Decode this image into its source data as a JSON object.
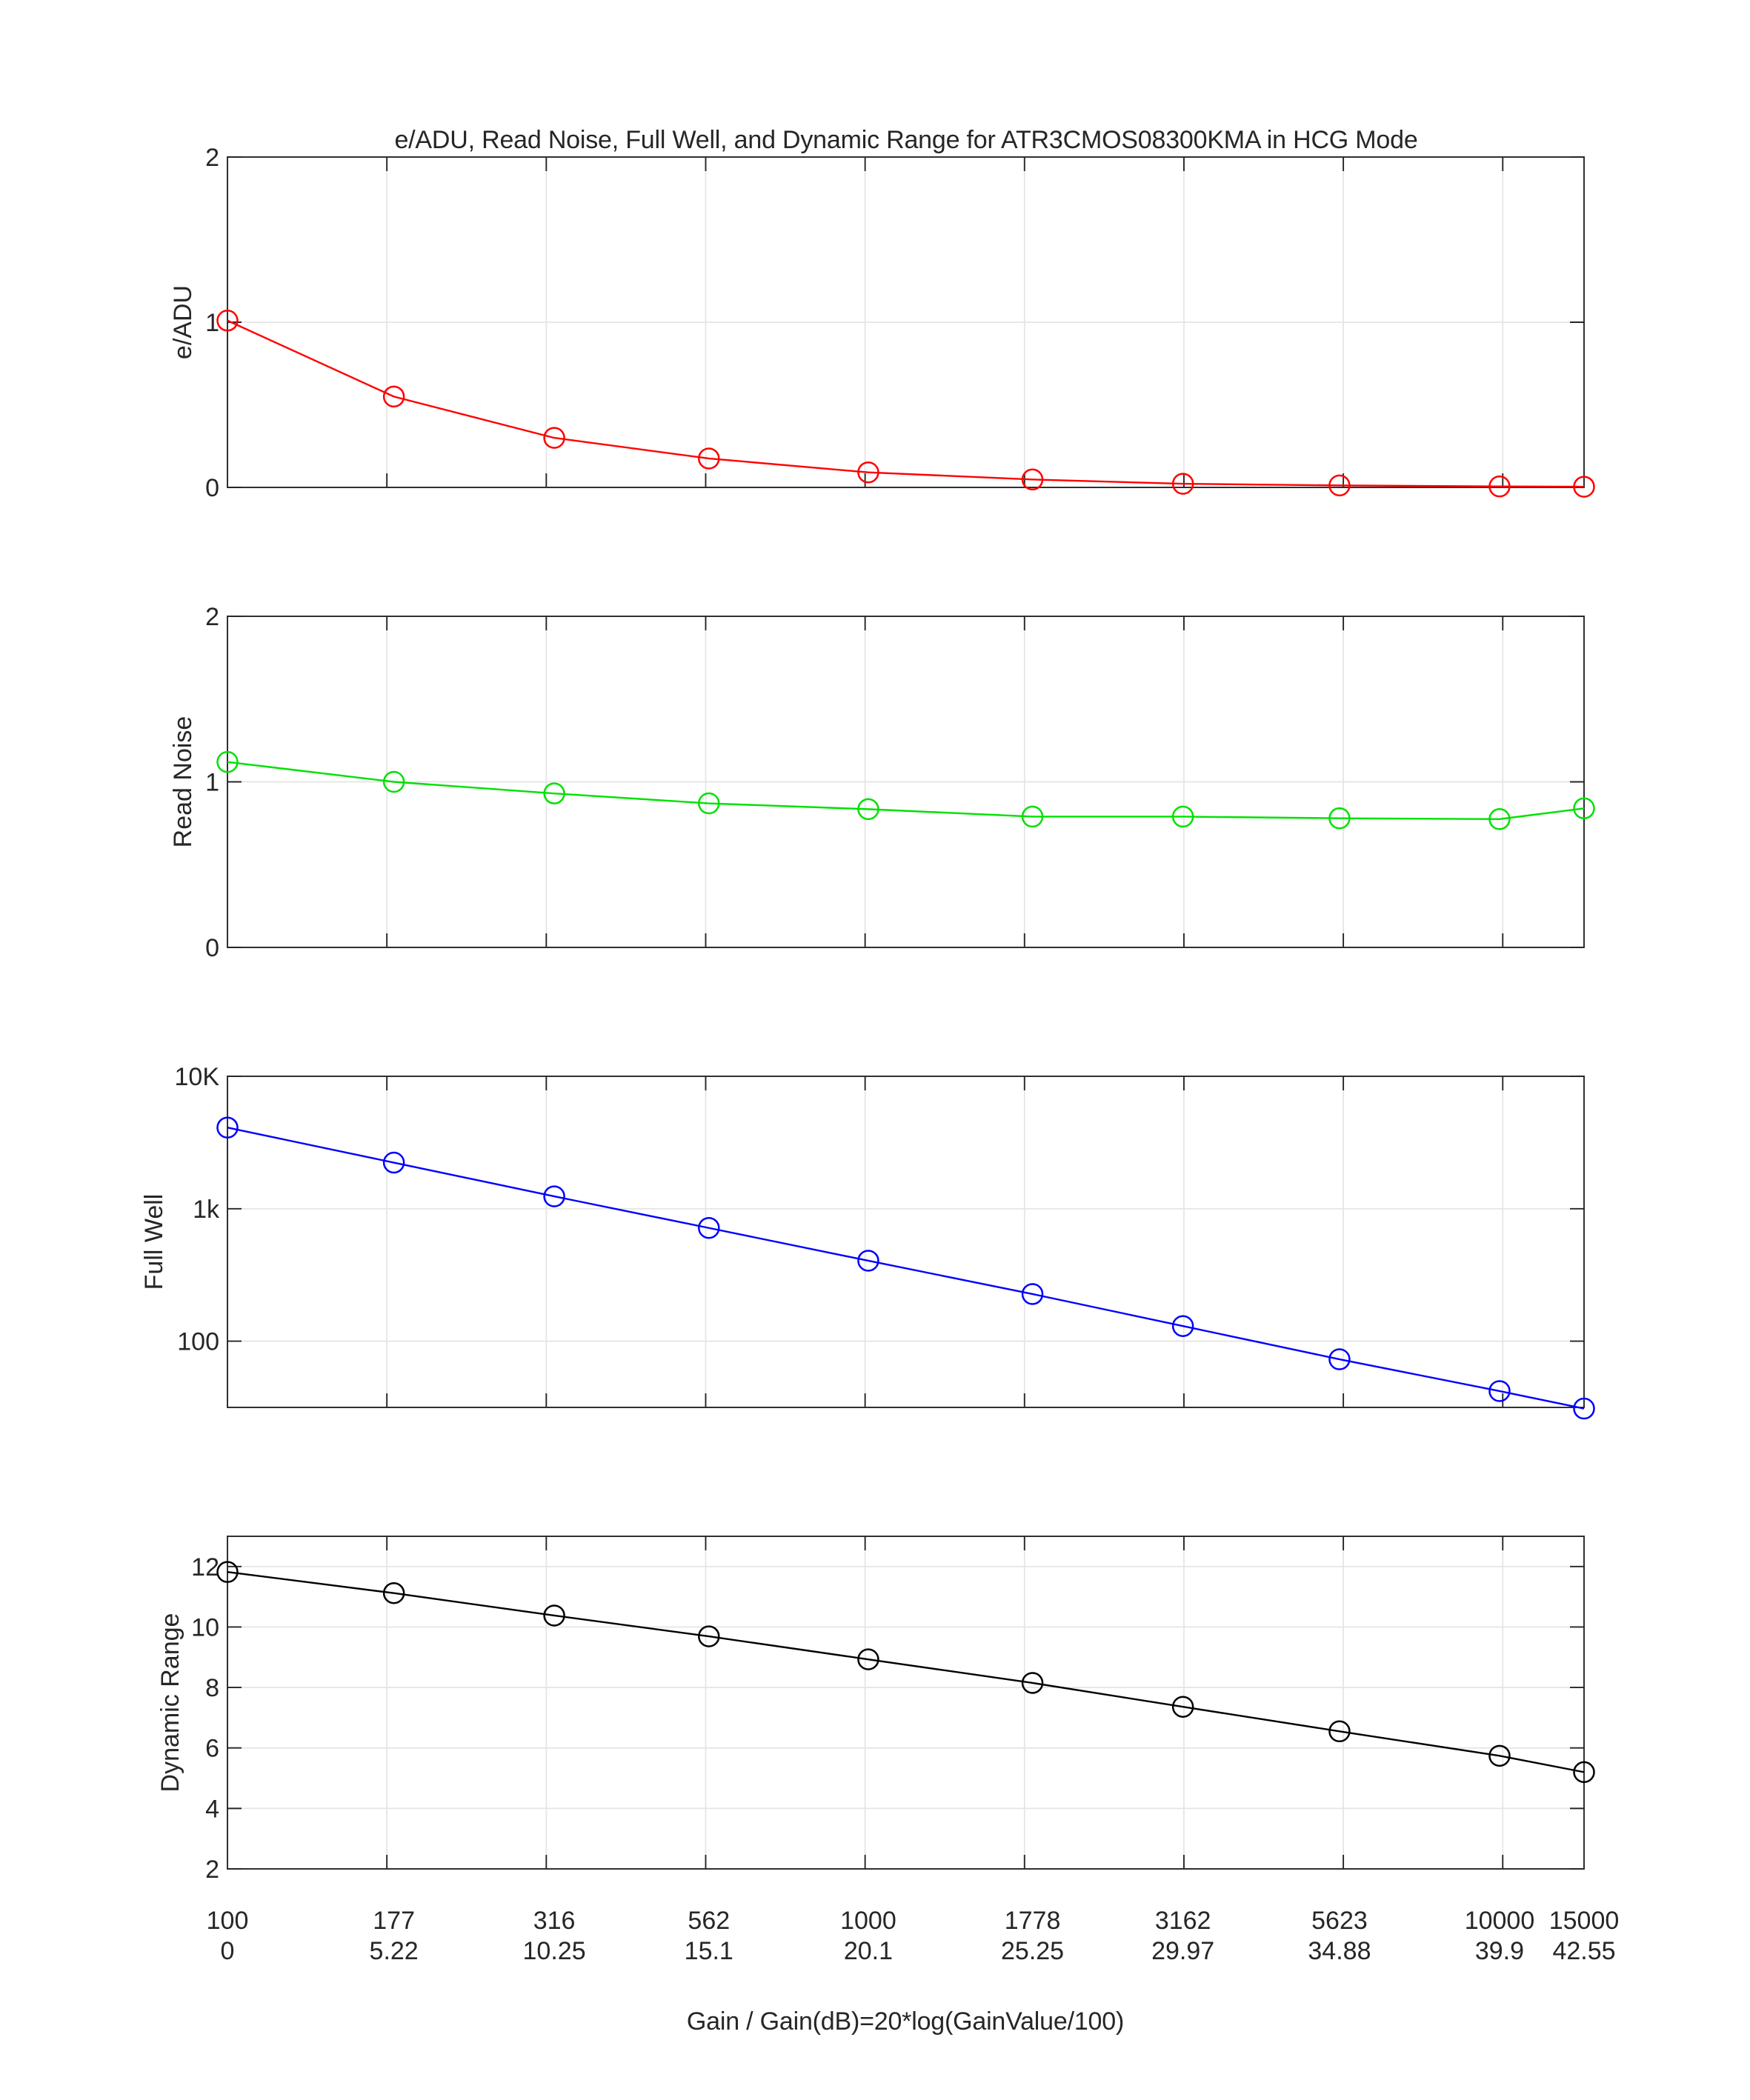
{
  "title": "e/ADU, Read Noise, Full Well, and Dynamic Range for ATR3CMOS08300KMA in HCG Mode",
  "x_axis": {
    "label": "Gain / Gain(dB)=20*log(GainValue/100)",
    "db_min": 0,
    "db_max": 42.55,
    "tick_db": [
      0,
      5.22,
      10.25,
      15.1,
      20.1,
      25.25,
      29.97,
      34.88,
      39.9,
      42.55
    ],
    "grid_db": [
      5,
      10,
      15,
      20,
      25,
      30,
      35,
      40
    ],
    "gain_labels": [
      "100",
      "177",
      "316",
      "562",
      "1000",
      "1778",
      "3162",
      "5623",
      "10000",
      "15000"
    ],
    "db_labels": [
      "0",
      "5.22",
      "10.25",
      "15.1",
      "20.1",
      "25.25",
      "29.97",
      "34.88",
      "39.9",
      "42.55"
    ]
  },
  "colors": {
    "axis": "#262626",
    "grid": "#e4e4e4",
    "text": "#262626",
    "eadu": "#ff0000",
    "read_noise": "#00e100",
    "full_well": "#0000ff",
    "dynamic_range": "#000000"
  },
  "chart_data": [
    {
      "type": "line",
      "name": "e/ADU",
      "ylabel": "e/ADU",
      "color_key": "eadu",
      "yscale": "linear",
      "ylim": [
        0,
        2
      ],
      "yticks": [
        {
          "v": 0,
          "label": "0"
        },
        {
          "v": 1,
          "label": "1"
        },
        {
          "v": 2,
          "label": "2"
        }
      ],
      "ygrid": [
        1
      ],
      "x_db": [
        0,
        5.22,
        10.25,
        15.1,
        20.1,
        25.25,
        29.97,
        34.88,
        39.9,
        42.55
      ],
      "values": [
        1.01,
        0.55,
        0.3,
        0.175,
        0.091,
        0.048,
        0.022,
        0.012,
        0.006,
        0.004
      ]
    },
    {
      "type": "line",
      "name": "Read Noise",
      "ylabel": "Read Noise",
      "color_key": "read_noise",
      "yscale": "linear",
      "ylim": [
        0,
        2
      ],
      "yticks": [
        {
          "v": 0,
          "label": "0"
        },
        {
          "v": 1,
          "label": "1"
        },
        {
          "v": 2,
          "label": "2"
        }
      ],
      "ygrid": [
        1
      ],
      "x_db": [
        0,
        5.22,
        10.25,
        15.1,
        20.1,
        25.25,
        29.97,
        34.88,
        39.9,
        42.55
      ],
      "values": [
        1.12,
        1.0,
        0.93,
        0.87,
        0.835,
        0.79,
        0.79,
        0.78,
        0.775,
        0.84
      ]
    },
    {
      "type": "line",
      "name": "Full Well",
      "ylabel": "Full Well",
      "color_key": "full_well",
      "yscale": "log",
      "ylim": [
        31.62,
        10000
      ],
      "yticks": [
        {
          "v": 10000,
          "label": "10K"
        },
        {
          "v": 1000,
          "label": "1k"
        },
        {
          "v": 100,
          "label": "100"
        }
      ],
      "ygrid": [
        1000,
        100
      ],
      "x_db": [
        0,
        5.22,
        10.25,
        15.1,
        20.1,
        25.25,
        29.97,
        34.88,
        39.9,
        42.55
      ],
      "values": [
        4100,
        2230,
        1240,
        716,
        405,
        227,
        130,
        73,
        42,
        31
      ]
    },
    {
      "type": "line",
      "name": "Dynamic Range",
      "ylabel": "Dynamic Range",
      "color_key": "dynamic_range",
      "yscale": "linear",
      "ylim": [
        2,
        13
      ],
      "yticks": [
        {
          "v": 12,
          "label": "12"
        },
        {
          "v": 10,
          "label": "10"
        },
        {
          "v": 8,
          "label": "8"
        },
        {
          "v": 6,
          "label": "6"
        },
        {
          "v": 4,
          "label": "4"
        },
        {
          "v": 2,
          "label": "2"
        }
      ],
      "ygrid": [
        12,
        10,
        8,
        6,
        4
      ],
      "x_db": [
        0,
        5.22,
        10.25,
        15.1,
        20.1,
        25.25,
        29.97,
        34.88,
        39.9,
        42.55
      ],
      "values": [
        11.82,
        11.12,
        10.38,
        9.69,
        8.93,
        8.15,
        7.36,
        6.55,
        5.74,
        5.2
      ]
    }
  ]
}
